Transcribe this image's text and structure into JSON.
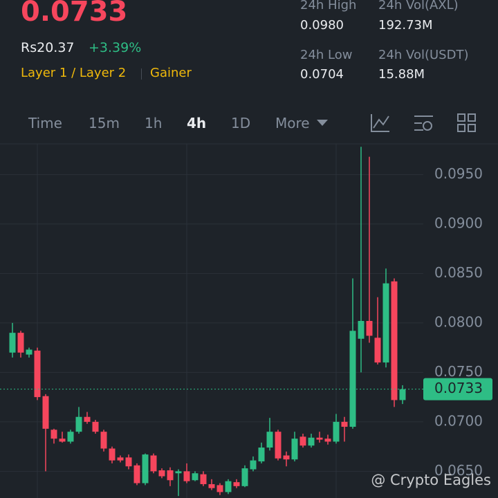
{
  "header": {
    "price": "0.0733",
    "fiat_price": "Rs20.37",
    "change": "+3.39%",
    "tags": [
      "Layer 1 / Layer 2",
      "Gainer"
    ],
    "stats": [
      {
        "label": "24h High",
        "value": "0.0980"
      },
      {
        "label": "24h Vol(AXL)",
        "value": "192.73M"
      },
      {
        "label": "24h Low",
        "value": "0.0704"
      },
      {
        "label": "24h Vol(USDT)",
        "value": "15.88M"
      }
    ]
  },
  "tabs": [
    "Time",
    "15m",
    "1h",
    "4h",
    "1D",
    "More"
  ],
  "active_tab": "4h",
  "watermark": "@ Crypto Eagles",
  "chart_data": {
    "type": "candlestick",
    "open": [
      0.077,
      0.079,
      0.0768,
      0.0772,
      0.0726,
      0.0692,
      0.0683,
      0.068,
      0.069,
      0.0705,
      0.07,
      0.069,
      0.0673,
      0.0664,
      0.0664,
      0.0656,
      0.0638,
      0.0666,
      0.0651,
      0.0651,
      0.0648,
      0.065,
      0.0641,
      0.0647,
      0.0637,
      0.0636,
      0.0629,
      0.0639,
      0.0635,
      0.0652,
      0.066,
      0.0674,
      0.069,
      0.0666,
      0.0662,
      0.0685,
      0.0676,
      0.0684,
      0.0683,
      0.068,
      0.07,
      0.0695,
      0.0784,
      0.0802,
      0.0785,
      0.076,
      0.0842,
      0.0722
    ],
    "high": [
      0.08,
      0.0792,
      0.0775,
      0.0775,
      0.0728,
      0.0693,
      0.069,
      0.0692,
      0.0715,
      0.071,
      0.0702,
      0.0692,
      0.0675,
      0.0666,
      0.0667,
      0.0658,
      0.0668,
      0.0668,
      0.0653,
      0.0654,
      0.0652,
      0.0658,
      0.065,
      0.065,
      0.0642,
      0.0638,
      0.0642,
      0.0642,
      0.0656,
      0.0665,
      0.0679,
      0.0704,
      0.0692,
      0.067,
      0.069,
      0.0688,
      0.0688,
      0.069,
      0.0687,
      0.0708,
      0.0705,
      0.0845,
      0.0978,
      0.0968,
      0.0826,
      0.0855,
      0.0845,
      0.0737
    ],
    "low": [
      0.0765,
      0.0765,
      0.0765,
      0.0722,
      0.065,
      0.0678,
      0.0679,
      0.0678,
      0.0688,
      0.0698,
      0.0688,
      0.067,
      0.0658,
      0.0659,
      0.0652,
      0.0636,
      0.0636,
      0.0648,
      0.0643,
      0.0635,
      0.0625,
      0.0638,
      0.064,
      0.0635,
      0.0631,
      0.0626,
      0.0627,
      0.0633,
      0.0634,
      0.065,
      0.0658,
      0.0671,
      0.0661,
      0.0655,
      0.066,
      0.0674,
      0.0674,
      0.0679,
      0.0677,
      0.0678,
      0.068,
      0.0693,
      0.075,
      0.078,
      0.0758,
      0.0755,
      0.0715,
      0.0718
    ],
    "close": [
      0.079,
      0.077,
      0.0773,
      0.0725,
      0.0693,
      0.0683,
      0.068,
      0.069,
      0.0705,
      0.07,
      0.069,
      0.0673,
      0.0661,
      0.0661,
      0.0655,
      0.0638,
      0.0667,
      0.065,
      0.0645,
      0.0641,
      0.065,
      0.064,
      0.0648,
      0.0637,
      0.0633,
      0.0629,
      0.064,
      0.0635,
      0.0653,
      0.0661,
      0.0674,
      0.069,
      0.0663,
      0.0662,
      0.0683,
      0.0676,
      0.0684,
      0.0682,
      0.068,
      0.07,
      0.0695,
      0.0792,
      0.0802,
      0.0787,
      0.076,
      0.084,
      0.0722,
      0.0733
    ],
    "up_color": "#2ebd85",
    "down_color": "#f6465d",
    "last_price": {
      "value": 0.0733,
      "label": "0.0733"
    },
    "ylim": [
      0.0623,
      0.0981
    ],
    "yticks": [
      {
        "value": 0.065,
        "label": "0.0650"
      },
      {
        "value": 0.07,
        "label": "0.0700"
      },
      {
        "value": 0.075,
        "label": "0.0750"
      },
      {
        "value": 0.08,
        "label": "0.0800"
      },
      {
        "value": 0.085,
        "label": "0.0850"
      },
      {
        "value": 0.09,
        "label": "0.0900"
      },
      {
        "value": 0.095,
        "label": "0.0950"
      }
    ],
    "grid": true
  }
}
